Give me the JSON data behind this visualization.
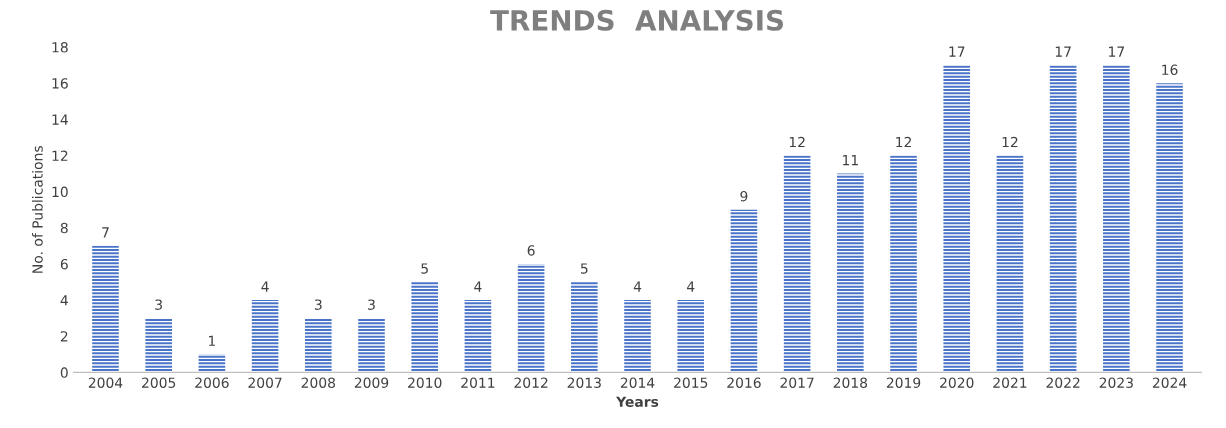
{
  "chart_data": {
    "type": "bar",
    "title": "TRENDS  ANALYSIS",
    "xlabel": "Years",
    "ylabel": "No. of Publications",
    "categories": [
      "2004",
      "2005",
      "2006",
      "2007",
      "2008",
      "2009",
      "2010",
      "2011",
      "2012",
      "2013",
      "2014",
      "2015",
      "2016",
      "2017",
      "2018",
      "2019",
      "2020",
      "2021",
      "2022",
      "2023",
      "2024"
    ],
    "values": [
      7,
      3,
      1,
      4,
      3,
      3,
      5,
      4,
      6,
      5,
      4,
      4,
      9,
      12,
      11,
      12,
      17,
      12,
      17,
      17,
      16
    ],
    "color": "#4a74c9",
    "ylim": [
      0,
      18
    ],
    "yticks": [
      0,
      2,
      4,
      6,
      8,
      10,
      12,
      14,
      16,
      18
    ],
    "grid": false,
    "data_labels": true
  }
}
